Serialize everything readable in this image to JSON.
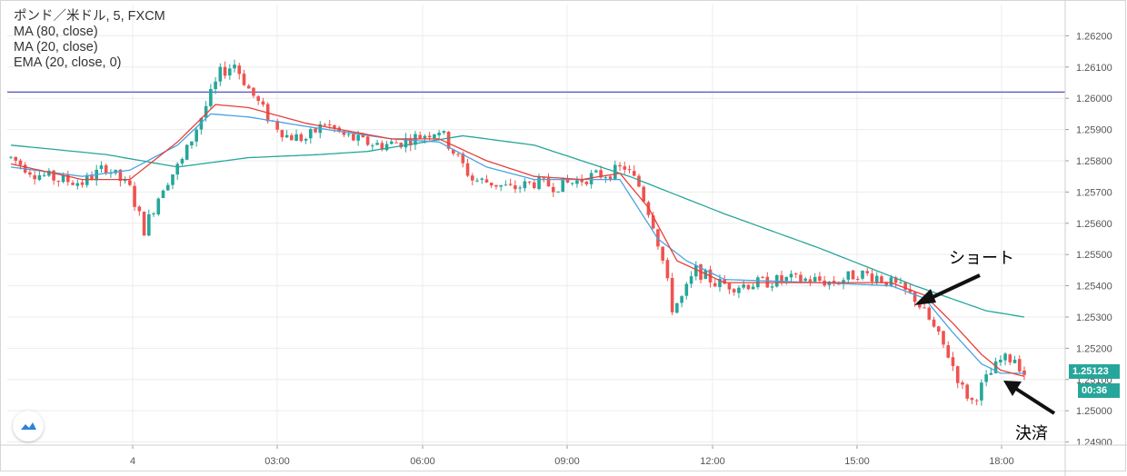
{
  "legend": {
    "symbol": "ポンド／米ドル, 5, FXCM",
    "ma80": "MA (80, close)",
    "ma20": "MA (20, close)",
    "ema20": "EMA (20, close, 0)"
  },
  "last_price": "1.25123",
  "countdown": "00:36",
  "annotations": {
    "short": "ショート",
    "exit": "決済"
  },
  "colors": {
    "up": "#26a69a",
    "down": "#ef5350",
    "ma80": "#26a69a",
    "ma20": "#4aa3e0",
    "ema20": "#e8403a",
    "hline": "#3f3fbf",
    "grid": "#ececec",
    "axis": "#555555"
  },
  "chart_data": {
    "type": "candlestick",
    "interval_minutes": 5,
    "y_ticks": [
      "1.26200",
      "1.26100",
      "1.26000",
      "1.25900",
      "1.25800",
      "1.25700",
      "1.25600",
      "1.25500",
      "1.25400",
      "1.25300",
      "1.25200",
      "1.25100",
      "1.25000",
      "1.24900"
    ],
    "x_ticks": [
      "4",
      "03:00",
      "06:00",
      "09:00",
      "12:00",
      "15:00",
      "18:00"
    ],
    "ylim": [
      1.2489,
      1.263
    ],
    "horizontal_line": 1.2602,
    "close_path": [
      [
        0,
        1.2581
      ],
      [
        5,
        1.2576
      ],
      [
        10,
        1.2574
      ],
      [
        15,
        1.2573
      ],
      [
        20,
        1.2578
      ],
      [
        25,
        1.2571
      ],
      [
        28,
        1.2558
      ],
      [
        32,
        1.2572
      ],
      [
        36,
        1.258
      ],
      [
        40,
        1.2594
      ],
      [
        44,
        1.2608
      ],
      [
        47,
        1.2611
      ],
      [
        50,
        1.2603
      ],
      [
        54,
        1.2594
      ],
      [
        58,
        1.2588
      ],
      [
        62,
        1.2587
      ],
      [
        66,
        1.2592
      ],
      [
        70,
        1.2588
      ],
      [
        74,
        1.2586
      ],
      [
        78,
        1.2585
      ],
      [
        82,
        1.2586
      ],
      [
        86,
        1.2588
      ],
      [
        90,
        1.259
      ],
      [
        93,
        1.2583
      ],
      [
        97,
        1.2574
      ],
      [
        101,
        1.2573
      ],
      [
        105,
        1.2571
      ],
      [
        110,
        1.2573
      ],
      [
        114,
        1.2572
      ],
      [
        118,
        1.2573
      ],
      [
        122,
        1.2575
      ],
      [
        126,
        1.2576
      ],
      [
        129,
        1.2578
      ],
      [
        132,
        1.2572
      ],
      [
        135,
        1.256
      ],
      [
        137,
        1.2548
      ],
      [
        139,
        1.2533
      ],
      [
        141,
        1.2536
      ],
      [
        144,
        1.2545
      ],
      [
        148,
        1.2541
      ],
      [
        152,
        1.254
      ],
      [
        158,
        1.2541
      ],
      [
        163,
        1.2542
      ],
      [
        168,
        1.2542
      ],
      [
        173,
        1.2541
      ],
      [
        178,
        1.2544
      ],
      [
        182,
        1.2543
      ],
      [
        186,
        1.254
      ],
      [
        190,
        1.2536
      ],
      [
        193,
        1.2529
      ],
      [
        197,
        1.2518
      ],
      [
        200,
        1.2507
      ],
      [
        202,
        1.2503
      ],
      [
        205,
        1.251
      ],
      [
        208,
        1.2516
      ],
      [
        211,
        1.2517
      ],
      [
        213,
        1.2512
      ]
    ],
    "series": [
      {
        "name": "MA (80, close)",
        "values": [
          [
            0,
            1.2585
          ],
          [
            20,
            1.2582
          ],
          [
            35,
            1.2578
          ],
          [
            50,
            1.2581
          ],
          [
            65,
            1.2582
          ],
          [
            75,
            1.2583
          ],
          [
            95,
            1.2588
          ],
          [
            110,
            1.2585
          ],
          [
            120,
            1.258
          ],
          [
            130,
            1.2575
          ],
          [
            150,
            1.2563
          ],
          [
            170,
            1.2552
          ],
          [
            190,
            1.254
          ],
          [
            205,
            1.2532
          ],
          [
            213,
            1.253
          ]
        ]
      },
      {
        "name": "MA (20, close)",
        "values": [
          [
            0,
            1.2578
          ],
          [
            15,
            1.2575
          ],
          [
            25,
            1.2577
          ],
          [
            35,
            1.2585
          ],
          [
            42,
            1.2595
          ],
          [
            50,
            1.2594
          ],
          [
            62,
            1.2591
          ],
          [
            80,
            1.2587
          ],
          [
            90,
            1.2586
          ],
          [
            100,
            1.2578
          ],
          [
            110,
            1.2574
          ],
          [
            120,
            1.2574
          ],
          [
            128,
            1.2574
          ],
          [
            136,
            1.2555
          ],
          [
            142,
            1.2548
          ],
          [
            150,
            1.2542
          ],
          [
            170,
            1.2541
          ],
          [
            185,
            1.254
          ],
          [
            192,
            1.2536
          ],
          [
            198,
            1.2525
          ],
          [
            204,
            1.2515
          ],
          [
            208,
            1.2512
          ],
          [
            213,
            1.2512
          ]
        ]
      },
      {
        "name": "EMA (20, close, 0)",
        "values": [
          [
            0,
            1.2579
          ],
          [
            15,
            1.2574
          ],
          [
            25,
            1.2574
          ],
          [
            35,
            1.2586
          ],
          [
            43,
            1.2598
          ],
          [
            50,
            1.2597
          ],
          [
            62,
            1.2592
          ],
          [
            80,
            1.2587
          ],
          [
            90,
            1.2587
          ],
          [
            100,
            1.258
          ],
          [
            110,
            1.2575
          ],
          [
            120,
            1.2574
          ],
          [
            128,
            1.2576
          ],
          [
            134,
            1.2565
          ],
          [
            140,
            1.2548
          ],
          [
            150,
            1.2541
          ],
          [
            170,
            1.2541
          ],
          [
            185,
            1.2541
          ],
          [
            192,
            1.2537
          ],
          [
            198,
            1.2528
          ],
          [
            204,
            1.2518
          ],
          [
            208,
            1.2513
          ],
          [
            213,
            1.2511
          ]
        ]
      }
    ]
  }
}
